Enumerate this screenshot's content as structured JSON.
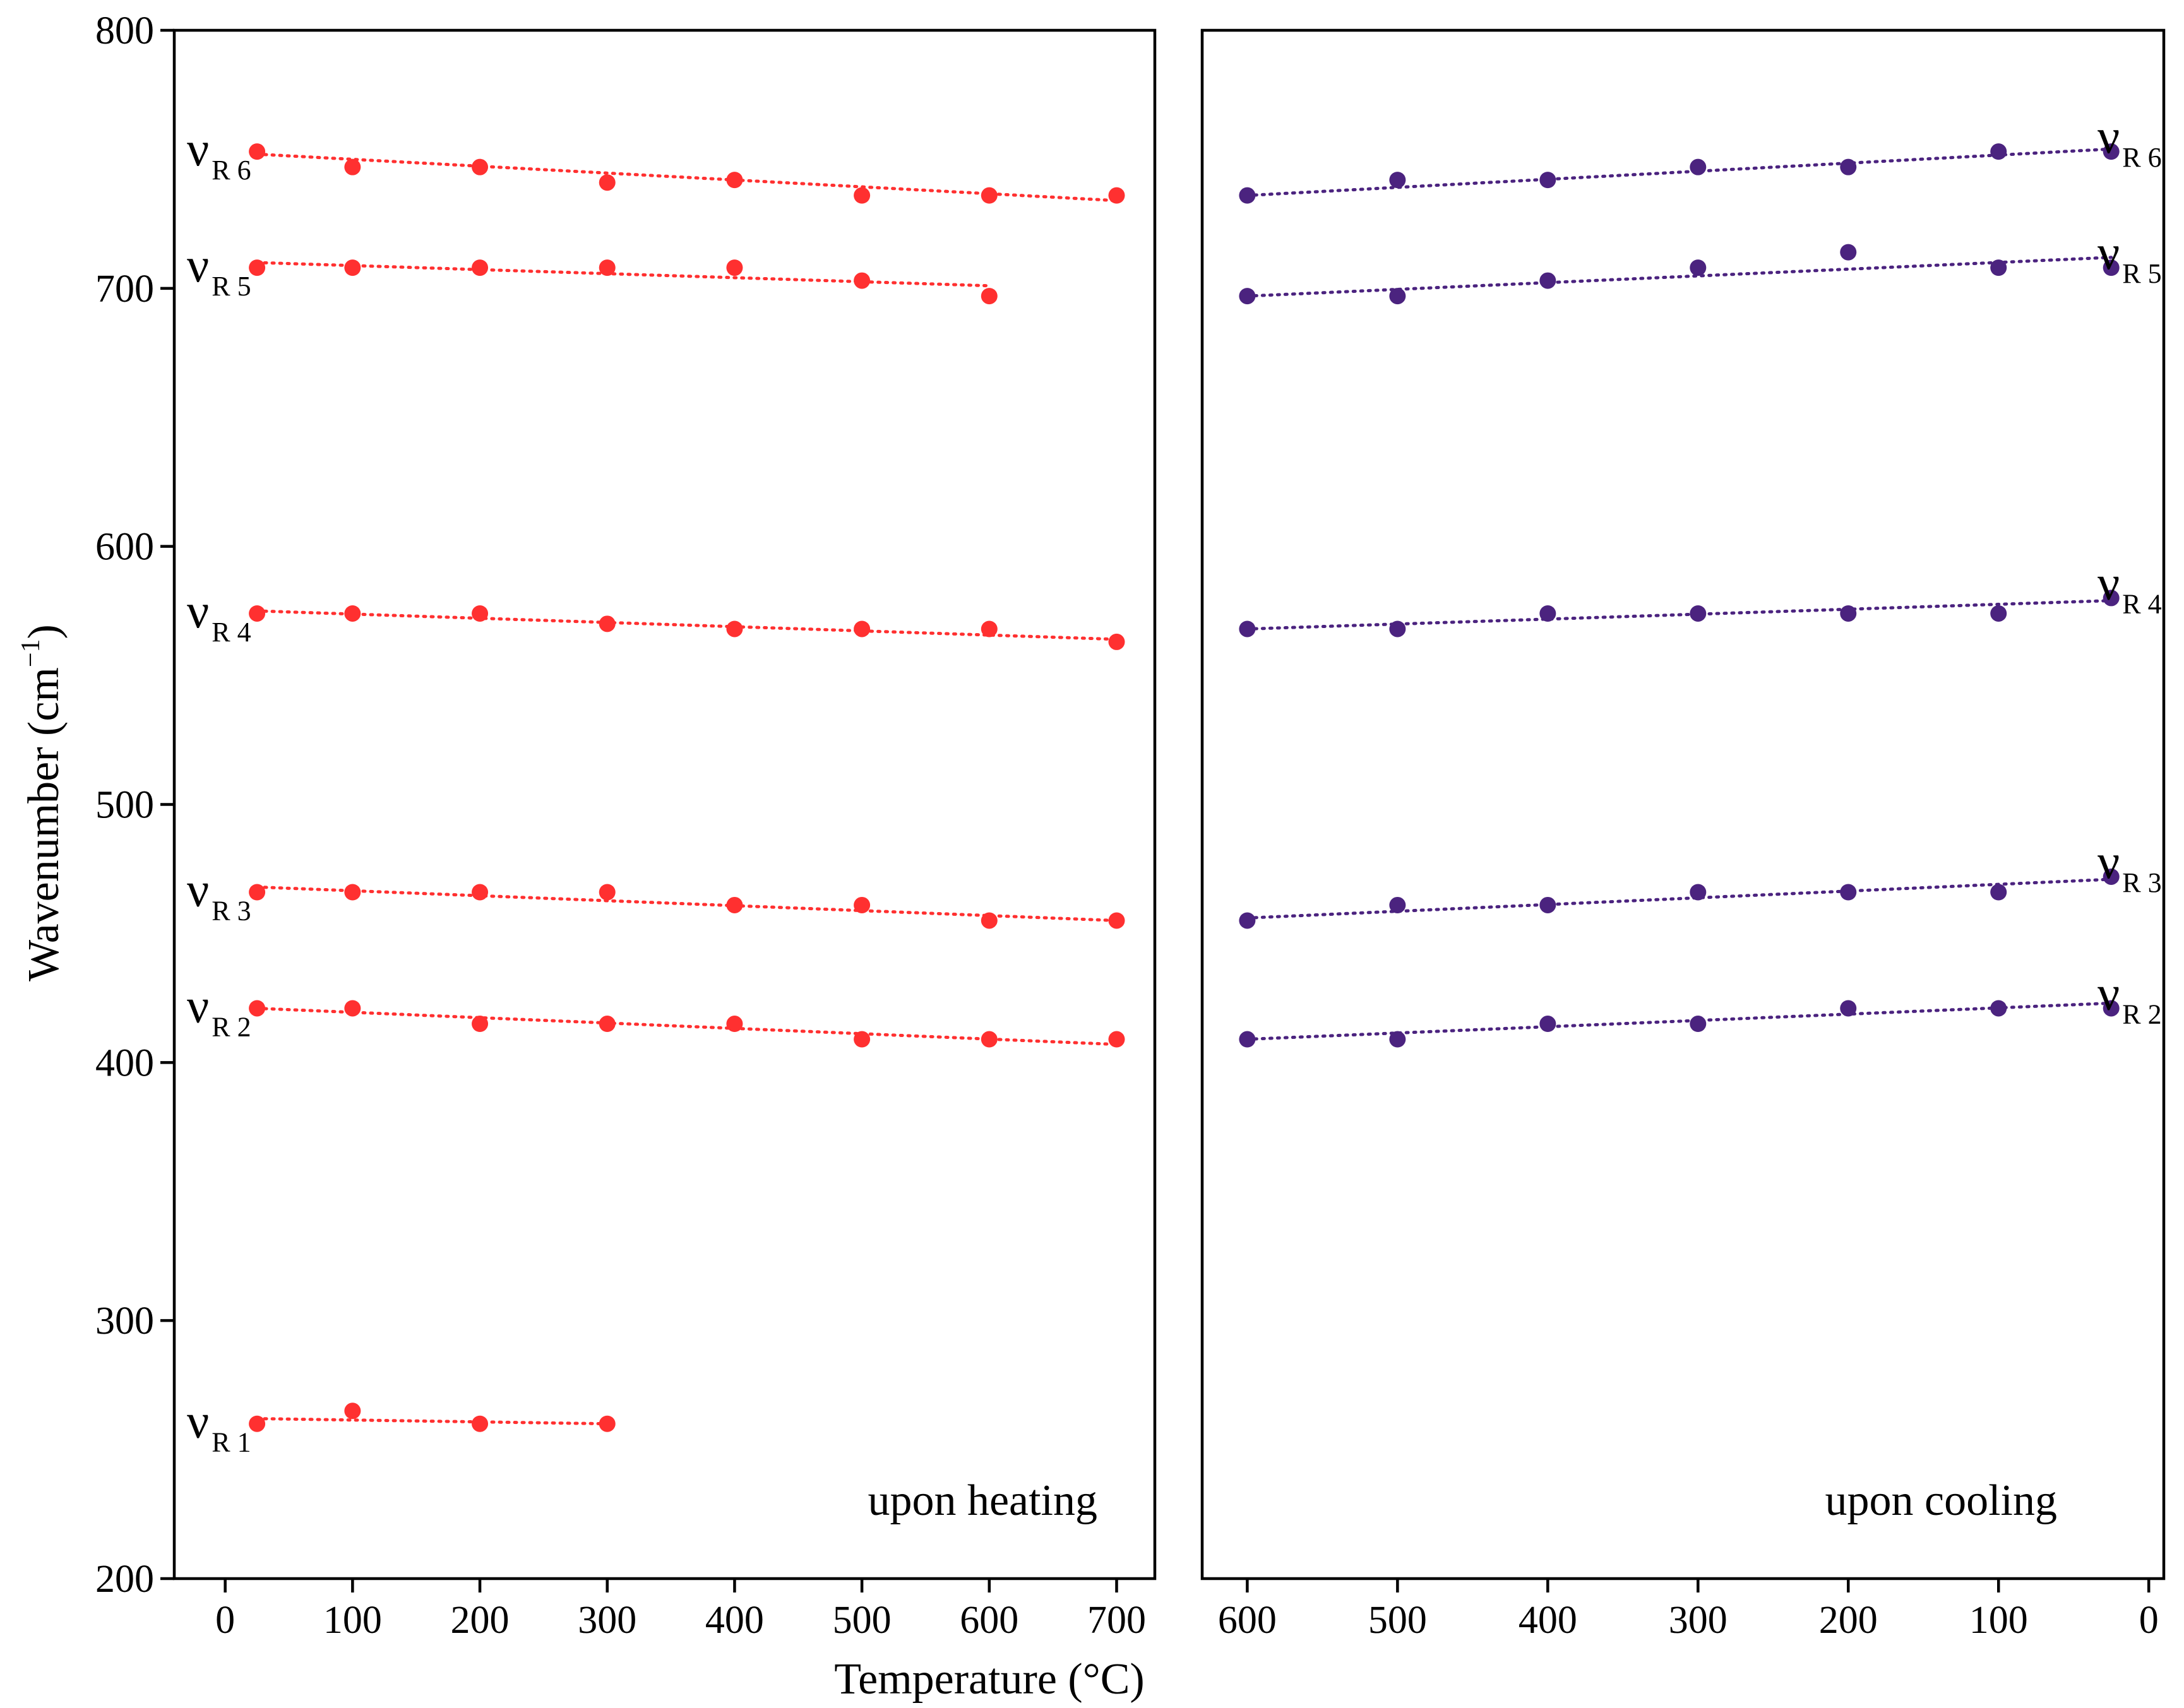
{
  "chart_data": [
    {
      "type": "scatter",
      "panel": "left",
      "annotation": "upon heating",
      "color": "#ff3030",
      "ylabel": "Wavenumber (cm",
      "ylabel_superscript": "−1",
      "ylabel_close": ")",
      "ylim": [
        200,
        800
      ],
      "yticks": [
        "200",
        "300",
        "400",
        "500",
        "600",
        "700",
        "800"
      ],
      "xlim": [
        -40,
        730
      ],
      "xticks": [
        "0",
        "100",
        "200",
        "300",
        "400",
        "500",
        "600",
        "700"
      ],
      "x_ascending": true,
      "series": [
        {
          "label": "ν",
          "sub": "R1",
          "x": [
            25,
            100,
            200,
            300
          ],
          "y": [
            260,
            265,
            260,
            260
          ],
          "fit": [
            [
              25,
              262
            ],
            [
              300,
              260
            ]
          ]
        },
        {
          "label": "ν",
          "sub": "R2",
          "x": [
            25,
            100,
            200,
            300,
            400,
            500,
            600,
            700
          ],
          "y": [
            421,
            421,
            415,
            415,
            415,
            409,
            409,
            409
          ],
          "fit": [
            [
              25,
              421
            ],
            [
              700,
              407
            ]
          ]
        },
        {
          "label": "ν",
          "sub": "R3",
          "x": [
            25,
            100,
            200,
            300,
            400,
            500,
            600,
            700
          ],
          "y": [
            466,
            466,
            466,
            466,
            461,
            461,
            455,
            455
          ],
          "fit": [
            [
              25,
              468
            ],
            [
              700,
              455
            ]
          ]
        },
        {
          "label": "ν",
          "sub": "R4",
          "x": [
            25,
            100,
            200,
            300,
            400,
            500,
            600,
            700
          ],
          "y": [
            574,
            574,
            574,
            570,
            568,
            568,
            568,
            563
          ],
          "fit": [
            [
              25,
              575
            ],
            [
              700,
              564
            ]
          ]
        },
        {
          "label": "ν",
          "sub": "R5",
          "x": [
            25,
            100,
            200,
            300,
            400,
            500,
            600
          ],
          "y": [
            708,
            708,
            708,
            708,
            708,
            703,
            697
          ],
          "fit": [
            [
              25,
              710
            ],
            [
              600,
              701
            ]
          ]
        },
        {
          "label": "ν",
          "sub": "R6",
          "x": [
            25,
            100,
            200,
            300,
            400,
            500,
            600,
            700
          ],
          "y": [
            753,
            747,
            747,
            741,
            742,
            736,
            736,
            736
          ],
          "fit": [
            [
              25,
              752
            ],
            [
              700,
              734
            ]
          ]
        }
      ]
    },
    {
      "type": "scatter",
      "panel": "right",
      "annotation": "upon cooling",
      "color": "#4b237f",
      "ylim": [
        200,
        800
      ],
      "xlim": [
        630,
        -10
      ],
      "xticks": [
        "600",
        "500",
        "400",
        "300",
        "200",
        "100",
        "0"
      ],
      "x_ascending": false,
      "series": [
        {
          "label": "ν",
          "sub": "R2",
          "x": [
            600,
            500,
            400,
            300,
            200,
            100,
            25
          ],
          "y": [
            409,
            409,
            415,
            415,
            421,
            421,
            421
          ],
          "fit": [
            [
              600,
              409
            ],
            [
              25,
              423
            ]
          ]
        },
        {
          "label": "ν",
          "sub": "R3",
          "x": [
            600,
            500,
            400,
            300,
            200,
            100,
            25
          ],
          "y": [
            455,
            461,
            461,
            466,
            466,
            466,
            472
          ],
          "fit": [
            [
              600,
              456
            ],
            [
              25,
              471
            ]
          ]
        },
        {
          "label": "ν",
          "sub": "R4",
          "x": [
            600,
            500,
            400,
            300,
            200,
            100,
            25
          ],
          "y": [
            568,
            568,
            574,
            574,
            574,
            574,
            580
          ],
          "fit": [
            [
              600,
              568
            ],
            [
              25,
              579
            ]
          ]
        },
        {
          "label": "ν",
          "sub": "R5",
          "x": [
            600,
            500,
            400,
            300,
            200,
            100,
            25
          ],
          "y": [
            697,
            697,
            703,
            708,
            714,
            708,
            708
          ],
          "fit": [
            [
              600,
              697
            ],
            [
              25,
              712
            ]
          ]
        },
        {
          "label": "ν",
          "sub": "R6",
          "x": [
            600,
            500,
            400,
            300,
            200,
            100,
            25
          ],
          "y": [
            736,
            742,
            742,
            747,
            747,
            753,
            753
          ],
          "fit": [
            [
              600,
              736
            ],
            [
              25,
              754
            ]
          ]
        }
      ]
    }
  ],
  "shared": {
    "xlabel": "Temperature (°C)"
  }
}
